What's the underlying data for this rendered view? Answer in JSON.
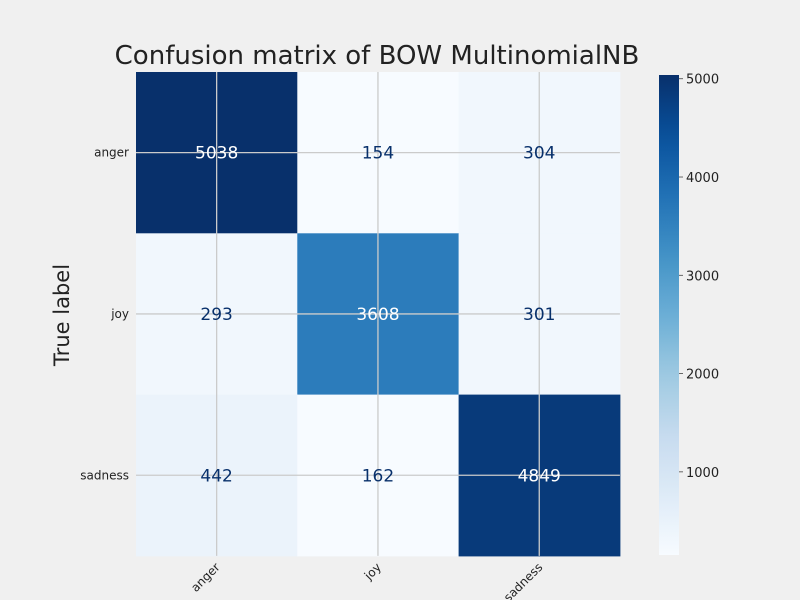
{
  "chart_data": {
    "type": "heatmap",
    "title": "Confusion matrix of BOW MultinomialNB",
    "ylabel": "True label",
    "xlabel": "",
    "row_labels": [
      "anger",
      "joy",
      "sadness"
    ],
    "col_labels": [
      "anger",
      "joy",
      "sadness"
    ],
    "matrix": [
      [
        5038,
        154,
        304
      ],
      [
        293,
        3608,
        301
      ],
      [
        442,
        162,
        4849
      ]
    ],
    "colormap": "Blues",
    "color_range": [
      154,
      5038
    ],
    "colorbar_ticks": [
      1000,
      2000,
      3000,
      4000,
      5000
    ],
    "colorbar_tick_labels": [
      "1000",
      "2000",
      "3000",
      "4000",
      "5000"
    ],
    "grid": true,
    "colors": {
      "background": "#f0f0f0",
      "grid": "#cbcbcb",
      "text_dark": "#08306b",
      "text_light": "#ffffff"
    }
  }
}
